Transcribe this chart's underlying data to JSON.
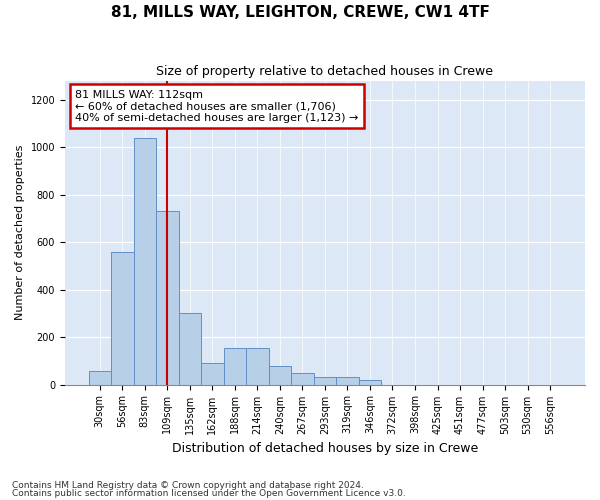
{
  "title": "81, MILLS WAY, LEIGHTON, CREWE, CW1 4TF",
  "subtitle": "Size of property relative to detached houses in Crewe",
  "xlabel": "Distribution of detached houses by size in Crewe",
  "ylabel": "Number of detached properties",
  "footnote1": "Contains HM Land Registry data © Crown copyright and database right 2024.",
  "footnote2": "Contains public sector information licensed under the Open Government Licence v3.0.",
  "annotation_title": "81 MILLS WAY: 112sqm",
  "annotation_line1": "← 60% of detached houses are smaller (1,706)",
  "annotation_line2": "40% of semi-detached houses are larger (1,123) →",
  "bar_color": "#b8cfe8",
  "bar_edge_color": "#6090c8",
  "vline_color": "#cc0000",
  "annotation_box_color": "#cc0000",
  "background_color": "#dce8f5",
  "bin_labels": [
    "30sqm",
    "56sqm",
    "83sqm",
    "109sqm",
    "135sqm",
    "162sqm",
    "188sqm",
    "214sqm",
    "240sqm",
    "267sqm",
    "293sqm",
    "319sqm",
    "346sqm",
    "372sqm",
    "398sqm",
    "425sqm",
    "451sqm",
    "477sqm",
    "503sqm",
    "530sqm",
    "556sqm"
  ],
  "bar_values": [
    57,
    560,
    1040,
    730,
    300,
    90,
    155,
    155,
    80,
    50,
    30,
    30,
    20,
    0,
    0,
    0,
    0,
    0,
    0,
    0,
    0
  ],
  "vline_position": 3.0,
  "ylim": [
    0,
    1280
  ],
  "yticks": [
    0,
    200,
    400,
    600,
    800,
    1000,
    1200
  ],
  "title_fontsize": 11,
  "subtitle_fontsize": 9,
  "ylabel_fontsize": 8,
  "xlabel_fontsize": 9,
  "tick_fontsize": 7,
  "footnote_fontsize": 6.5
}
